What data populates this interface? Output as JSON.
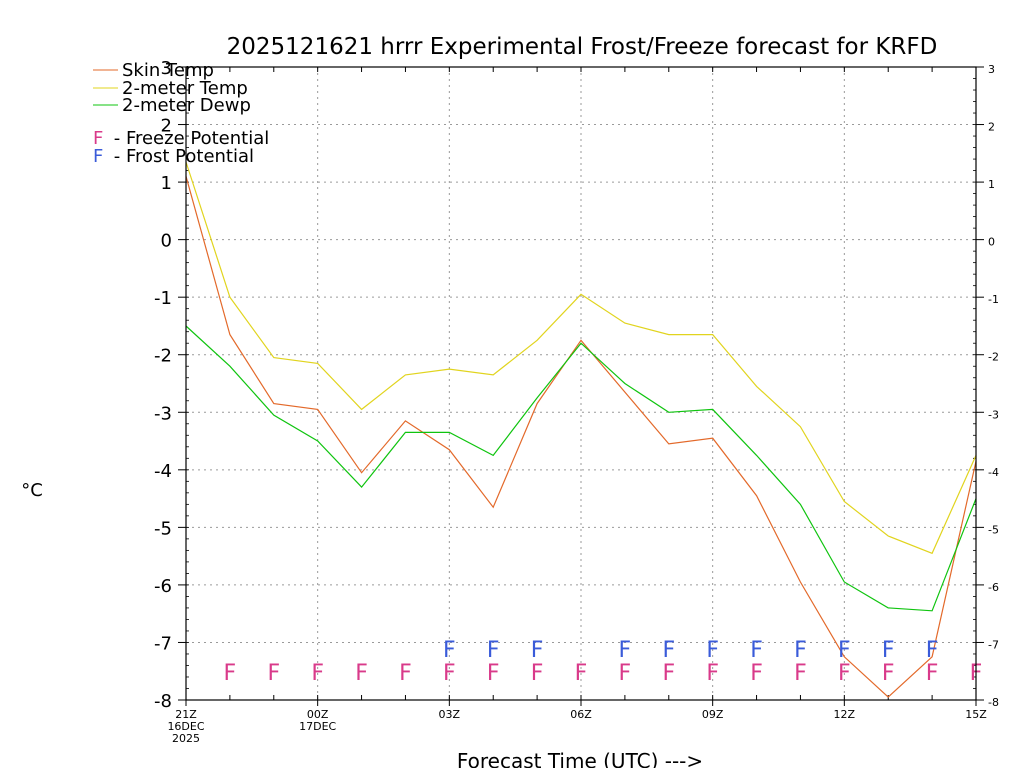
{
  "chart_data": {
    "type": "line",
    "title": "2025121621 hrrr Experimental Frost/Freeze forecast for KRFD",
    "xlabel": "Forecast Time (UTC) --->",
    "ylabel": "°C",
    "ylim": [
      -8,
      3
    ],
    "yticks": [
      "-8",
      "-7",
      "-6",
      "-5",
      "-4",
      "-3",
      "-2",
      "-1",
      "0",
      "1",
      "2",
      "3"
    ],
    "x": [
      0,
      1,
      2,
      3,
      4,
      5,
      6,
      7,
      8,
      9,
      10,
      11,
      12,
      13,
      14,
      15,
      16,
      17,
      18
    ],
    "xticks": [
      {
        "pos": 0,
        "l1": "21Z",
        "l2": "16DEC",
        "l3": "2025"
      },
      {
        "pos": 3,
        "l1": "00Z",
        "l2": "17DEC",
        "l3": ""
      },
      {
        "pos": 6,
        "l1": "03Z",
        "l2": "",
        "l3": ""
      },
      {
        "pos": 9,
        "l1": "06Z",
        "l2": "",
        "l3": ""
      },
      {
        "pos": 12,
        "l1": "09Z",
        "l2": "",
        "l3": ""
      },
      {
        "pos": 15,
        "l1": "12Z",
        "l2": "",
        "l3": ""
      },
      {
        "pos": 18,
        "l1": "15Z",
        "l2": "",
        "l3": ""
      }
    ],
    "grid": true,
    "series": [
      {
        "name": "Skin Temp",
        "color": "#e3692a",
        "values": [
          1.1,
          -1.65,
          -2.85,
          -2.95,
          -4.05,
          -3.15,
          -3.65,
          -4.65,
          -2.85,
          -1.75,
          -2.65,
          -3.55,
          -3.45,
          -4.45,
          -5.95,
          -7.25,
          -7.95,
          -7.25,
          -3.85
        ]
      },
      {
        "name": "2-meter Temp",
        "color": "#e1d41e",
        "values": [
          1.35,
          -1.0,
          -2.05,
          -2.15,
          -2.95,
          -2.35,
          -2.25,
          -2.35,
          -1.75,
          -0.95,
          -1.45,
          -1.65,
          -1.65,
          -2.55,
          -3.25,
          -4.55,
          -5.15,
          -5.45,
          -3.75
        ]
      },
      {
        "name": "2-meter Dewp",
        "color": "#0fc40f",
        "values": [
          -1.5,
          -2.2,
          -3.05,
          -3.5,
          -4.3,
          -3.35,
          -3.35,
          -3.75,
          -2.75,
          -1.8,
          -2.5,
          -3.0,
          -2.95,
          -3.75,
          -4.6,
          -5.95,
          -6.4,
          -6.45,
          -4.5
        ]
      }
    ],
    "freeze_potential": {
      "label": "F",
      "color": "#d93a8a",
      "y": -7.5,
      "hours": [
        1,
        2,
        3,
        4,
        5,
        6,
        7,
        8,
        9,
        10,
        11,
        12,
        13,
        14,
        15,
        16,
        17,
        18
      ]
    },
    "frost_potential": {
      "label": "F",
      "color": "#3a5bd9",
      "y": -7.1,
      "hours": [
        6,
        7,
        8,
        10,
        11,
        12,
        13,
        14,
        15,
        16,
        17
      ]
    }
  },
  "legend": {
    "skin": "Skin Temp",
    "temp2m": "2-meter Temp",
    "dewp2m": "2-meter Dewp",
    "freeze_letter": "F",
    "freeze_text": " - Freeze Potential",
    "frost_letter": "F",
    "frost_text": " - Frost Potential"
  }
}
